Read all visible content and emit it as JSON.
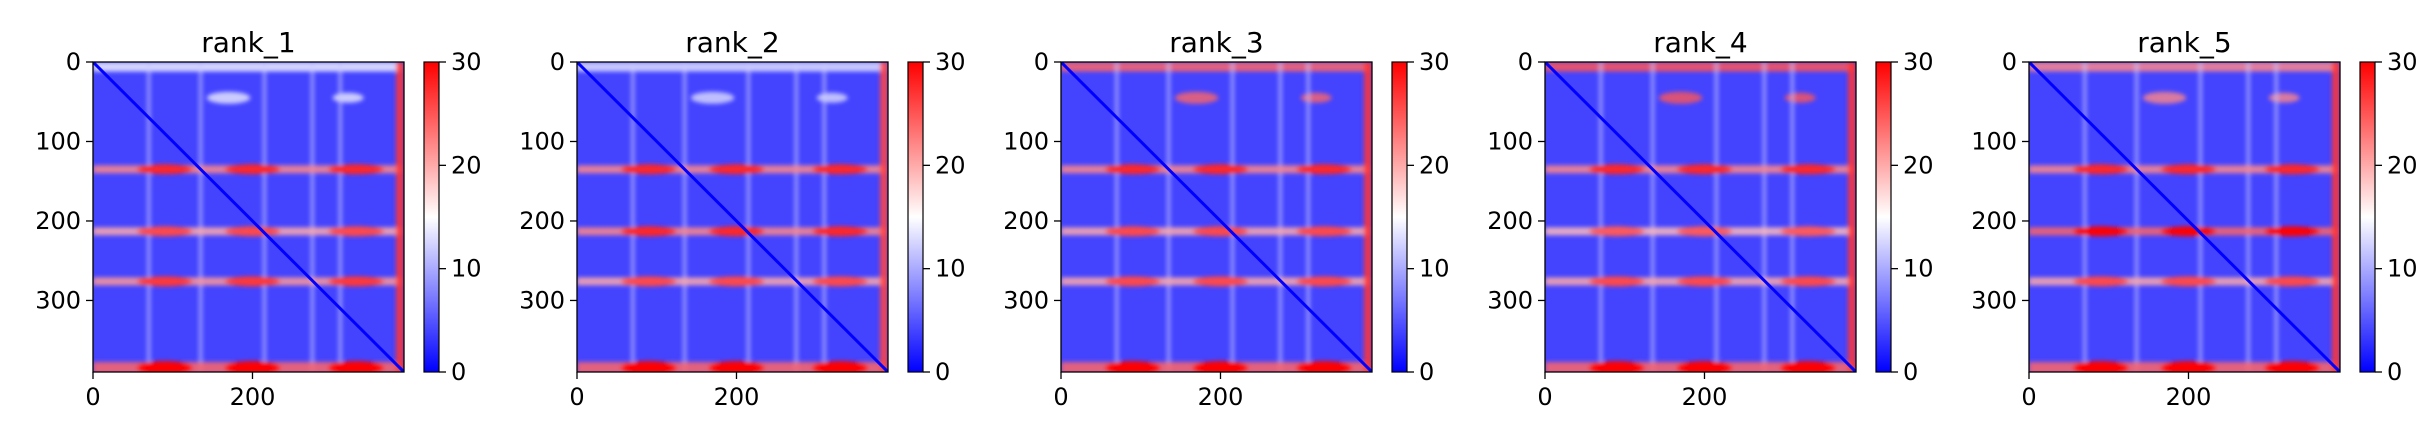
{
  "chart_data": [
    {
      "type": "heatmap",
      "title": "rank_1",
      "x_ticks": [
        0,
        200
      ],
      "y_ticks": [
        0,
        100,
        200,
        300
      ],
      "xlim": [
        0,
        390
      ],
      "ylim": [
        390,
        0
      ],
      "colorbar": {
        "ticks": [
          0,
          10,
          20,
          30
        ],
        "vmin": 0,
        "vmax": 30
      },
      "colormap": "bwr",
      "bands": [
        {
          "at": 135,
          "value": 28
        },
        {
          "at": 213,
          "value": 26
        },
        {
          "at": 276,
          "value": 27
        },
        {
          "at": 385,
          "value": 30
        }
      ],
      "top_edge_value": 14,
      "right_edge_value": 27
    },
    {
      "type": "heatmap",
      "title": "rank_2",
      "x_ticks": [
        0,
        200
      ],
      "y_ticks": [
        0,
        100,
        200,
        300
      ],
      "xlim": [
        0,
        390
      ],
      "ylim": [
        390,
        0
      ],
      "colorbar": {
        "ticks": [
          0,
          10,
          20,
          30
        ],
        "vmin": 0,
        "vmax": 30
      },
      "colormap": "bwr",
      "bands": [
        {
          "at": 135,
          "value": 28
        },
        {
          "at": 213,
          "value": 28
        },
        {
          "at": 276,
          "value": 26
        },
        {
          "at": 385,
          "value": 30
        }
      ],
      "top_edge_value": 13,
      "right_edge_value": 26
    },
    {
      "type": "heatmap",
      "title": "rank_3",
      "x_ticks": [
        0,
        200
      ],
      "y_ticks": [
        0,
        100,
        200,
        300
      ],
      "xlim": [
        0,
        390
      ],
      "ylim": [
        390,
        0
      ],
      "colorbar": {
        "ticks": [
          0,
          10,
          20,
          30
        ],
        "vmin": 0,
        "vmax": 30
      },
      "colormap": "bwr",
      "bands": [
        {
          "at": 135,
          "value": 28
        },
        {
          "at": 213,
          "value": 26
        },
        {
          "at": 276,
          "value": 26
        },
        {
          "at": 385,
          "value": 30
        }
      ],
      "top_edge_value": 24,
      "right_edge_value": 27
    },
    {
      "type": "heatmap",
      "title": "rank_4",
      "x_ticks": [
        0,
        200
      ],
      "y_ticks": [
        0,
        100,
        200,
        300
      ],
      "xlim": [
        0,
        390
      ],
      "ylim": [
        390,
        0
      ],
      "colorbar": {
        "ticks": [
          0,
          10,
          20,
          30
        ],
        "vmin": 0,
        "vmax": 30
      },
      "colormap": "bwr",
      "bands": [
        {
          "at": 135,
          "value": 28
        },
        {
          "at": 213,
          "value": 25
        },
        {
          "at": 276,
          "value": 26
        },
        {
          "at": 385,
          "value": 30
        }
      ],
      "top_edge_value": 25,
      "right_edge_value": 27
    },
    {
      "type": "heatmap",
      "title": "rank_5",
      "x_ticks": [
        0,
        200
      ],
      "y_ticks": [
        0,
        100,
        200,
        300
      ],
      "xlim": [
        0,
        390
      ],
      "ylim": [
        390,
        0
      ],
      "colorbar": {
        "ticks": [
          0,
          10,
          20,
          30
        ],
        "vmin": 0,
        "vmax": 30
      },
      "colormap": "bwr",
      "bands": [
        {
          "at": 135,
          "value": 28
        },
        {
          "at": 213,
          "value": 30
        },
        {
          "at": 276,
          "value": 26
        },
        {
          "at": 385,
          "value": 30
        }
      ],
      "top_edge_value": 22,
      "right_edge_value": 27
    }
  ]
}
